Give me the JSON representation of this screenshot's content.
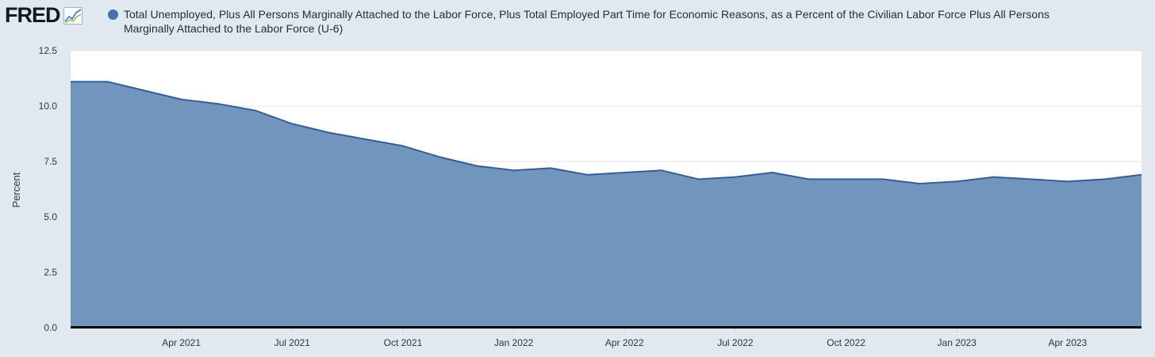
{
  "logo": {
    "text": "FRED",
    "icon": "trend-line-icon"
  },
  "legend": {
    "title": "Total Unemployed, Plus All Persons Marginally Attached to the Labor Force, Plus Total Employed Part Time for Economic Reasons, as a Percent of the Civilian Labor Force Plus All Persons Marginally Attached to the Labor Force (U-6)",
    "color": "#4572a7"
  },
  "chart_data": {
    "type": "area",
    "ylabel": "Percent",
    "ylim": [
      0,
      12.5
    ],
    "yticks": [
      "0.0",
      "2.5",
      "5.0",
      "7.5",
      "10.0",
      "12.5"
    ],
    "xtick_labels": [
      "Apr 2021",
      "Jul 2021",
      "Oct 2021",
      "Jan 2022",
      "Apr 2022",
      "Jul 2022",
      "Oct 2022",
      "Jan 2023",
      "Apr 2023"
    ],
    "grid": true,
    "line_color": "#345f93",
    "fill_color": "#7295be",
    "series": [
      {
        "x": [
          "2021-01",
          "2021-02",
          "2021-03",
          "2021-04",
          "2021-05",
          "2021-06",
          "2021-07",
          "2021-08",
          "2021-09",
          "2021-10",
          "2021-11",
          "2021-12",
          "2022-01",
          "2022-02",
          "2022-03",
          "2022-04",
          "2022-05",
          "2022-06",
          "2022-07",
          "2022-08",
          "2022-09",
          "2022-10",
          "2022-11",
          "2022-12",
          "2023-01",
          "2023-02",
          "2023-03",
          "2023-04",
          "2023-05",
          "2023-06"
        ],
        "values": [
          11.1,
          11.1,
          10.7,
          10.3,
          10.1,
          9.8,
          9.2,
          8.8,
          8.5,
          8.2,
          7.7,
          7.3,
          7.1,
          7.2,
          6.9,
          7.0,
          7.1,
          6.7,
          6.8,
          7.0,
          6.7,
          6.7,
          6.7,
          6.5,
          6.6,
          6.8,
          6.7,
          6.6,
          6.7,
          6.9
        ]
      }
    ]
  }
}
